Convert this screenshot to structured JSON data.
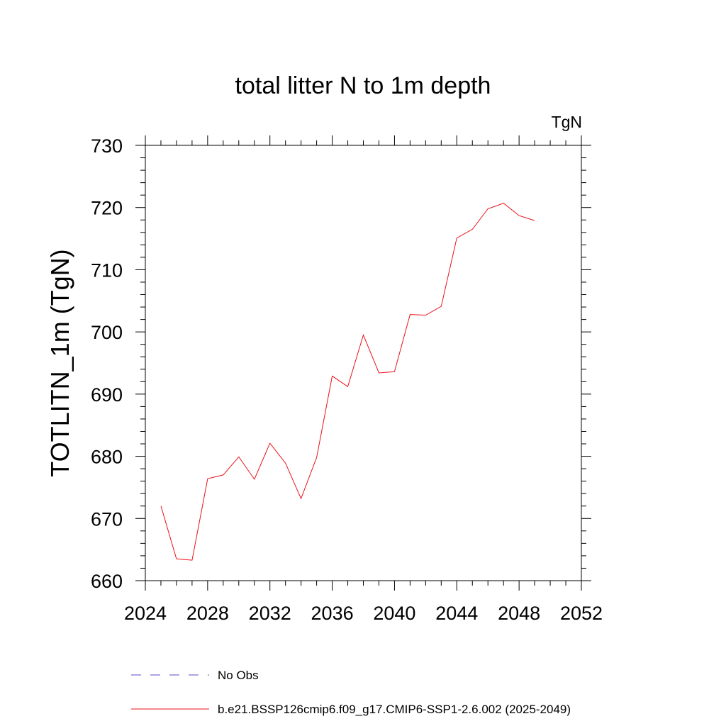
{
  "chart_data": {
    "type": "line",
    "title": "total litter N to 1m depth",
    "units_label": "TgN",
    "xlabel": "",
    "ylabel": "TOTLITN_1m  (TgN)",
    "xlim": [
      2024,
      2052
    ],
    "ylim": [
      660,
      730
    ],
    "x_ticks": [
      2024,
      2028,
      2032,
      2036,
      2040,
      2044,
      2048,
      2052
    ],
    "y_ticks": [
      660,
      670,
      680,
      690,
      700,
      710,
      720,
      730
    ],
    "x_minor_step": 1,
    "y_minor_step": 2,
    "grid": false,
    "legend_position": "bottom",
    "series": [
      {
        "name": "No Obs",
        "color": "#5b4fc7",
        "dash": "dashed",
        "x": [],
        "values": []
      },
      {
        "name": "b.e21.BSSP126cmip6.f09_g17.CMIP6-SSP1-2.6.002 (2025-2049)",
        "color": "#e8121a",
        "dash": "solid",
        "x": [
          2025,
          2026,
          2027,
          2028,
          2029,
          2030,
          2031,
          2032,
          2033,
          2034,
          2035,
          2036,
          2037,
          2038,
          2039,
          2040,
          2041,
          2042,
          2043,
          2044,
          2045,
          2046,
          2047,
          2048,
          2049
        ],
        "values": [
          672.0,
          663.5,
          663.3,
          676.4,
          677.0,
          679.9,
          676.3,
          682.1,
          678.9,
          673.2,
          679.8,
          692.9,
          691.2,
          699.5,
          693.4,
          693.6,
          702.8,
          702.7,
          704.1,
          715.1,
          716.5,
          719.8,
          720.7,
          718.7,
          717.9
        ]
      }
    ]
  }
}
